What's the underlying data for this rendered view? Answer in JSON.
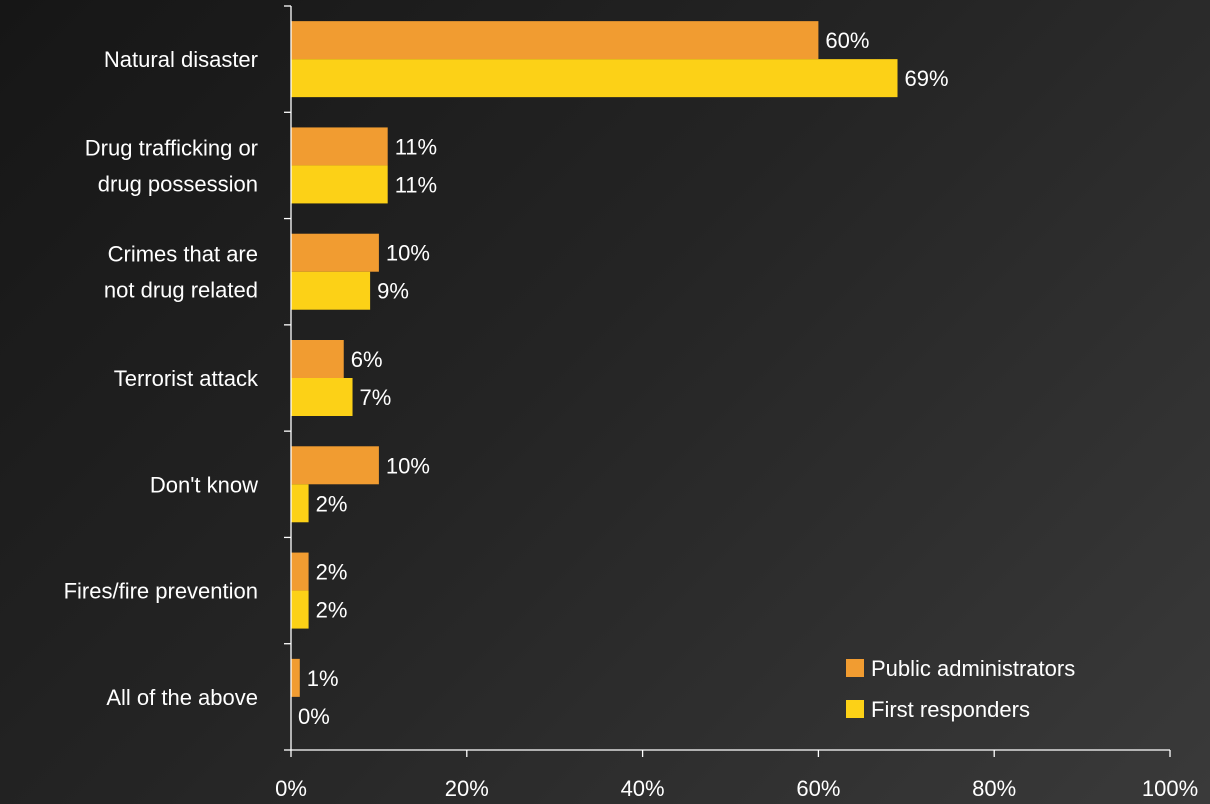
{
  "chart_data": {
    "type": "bar",
    "orientation": "horizontal",
    "title": "",
    "xlabel": "",
    "ylabel": "",
    "categories": [
      [
        "Natural disaster"
      ],
      [
        "Drug trafficking or",
        "drug possession"
      ],
      [
        "Crimes that are",
        "not drug related"
      ],
      [
        "Terrorist attack"
      ],
      [
        "Don't know"
      ],
      [
        "Fires/fire prevention"
      ],
      [
        "All of the above"
      ]
    ],
    "series": [
      {
        "name": "Public administrators",
        "color": "#F19C31",
        "values": [
          60,
          11,
          10,
          6,
          10,
          2,
          1
        ]
      },
      {
        "name": "First responders",
        "color": "#FCD117",
        "values": [
          69,
          11,
          9,
          7,
          2,
          2,
          0
        ]
      }
    ],
    "value_format": "percent",
    "xlim": [
      0,
      100
    ],
    "x_ticks": [
      "0%",
      "20%",
      "40%",
      "60%",
      "80%",
      "100%"
    ],
    "x_tick_values": [
      0,
      20,
      40,
      60,
      80,
      100
    ],
    "grid": false,
    "legend_position": "bottom-right"
  }
}
